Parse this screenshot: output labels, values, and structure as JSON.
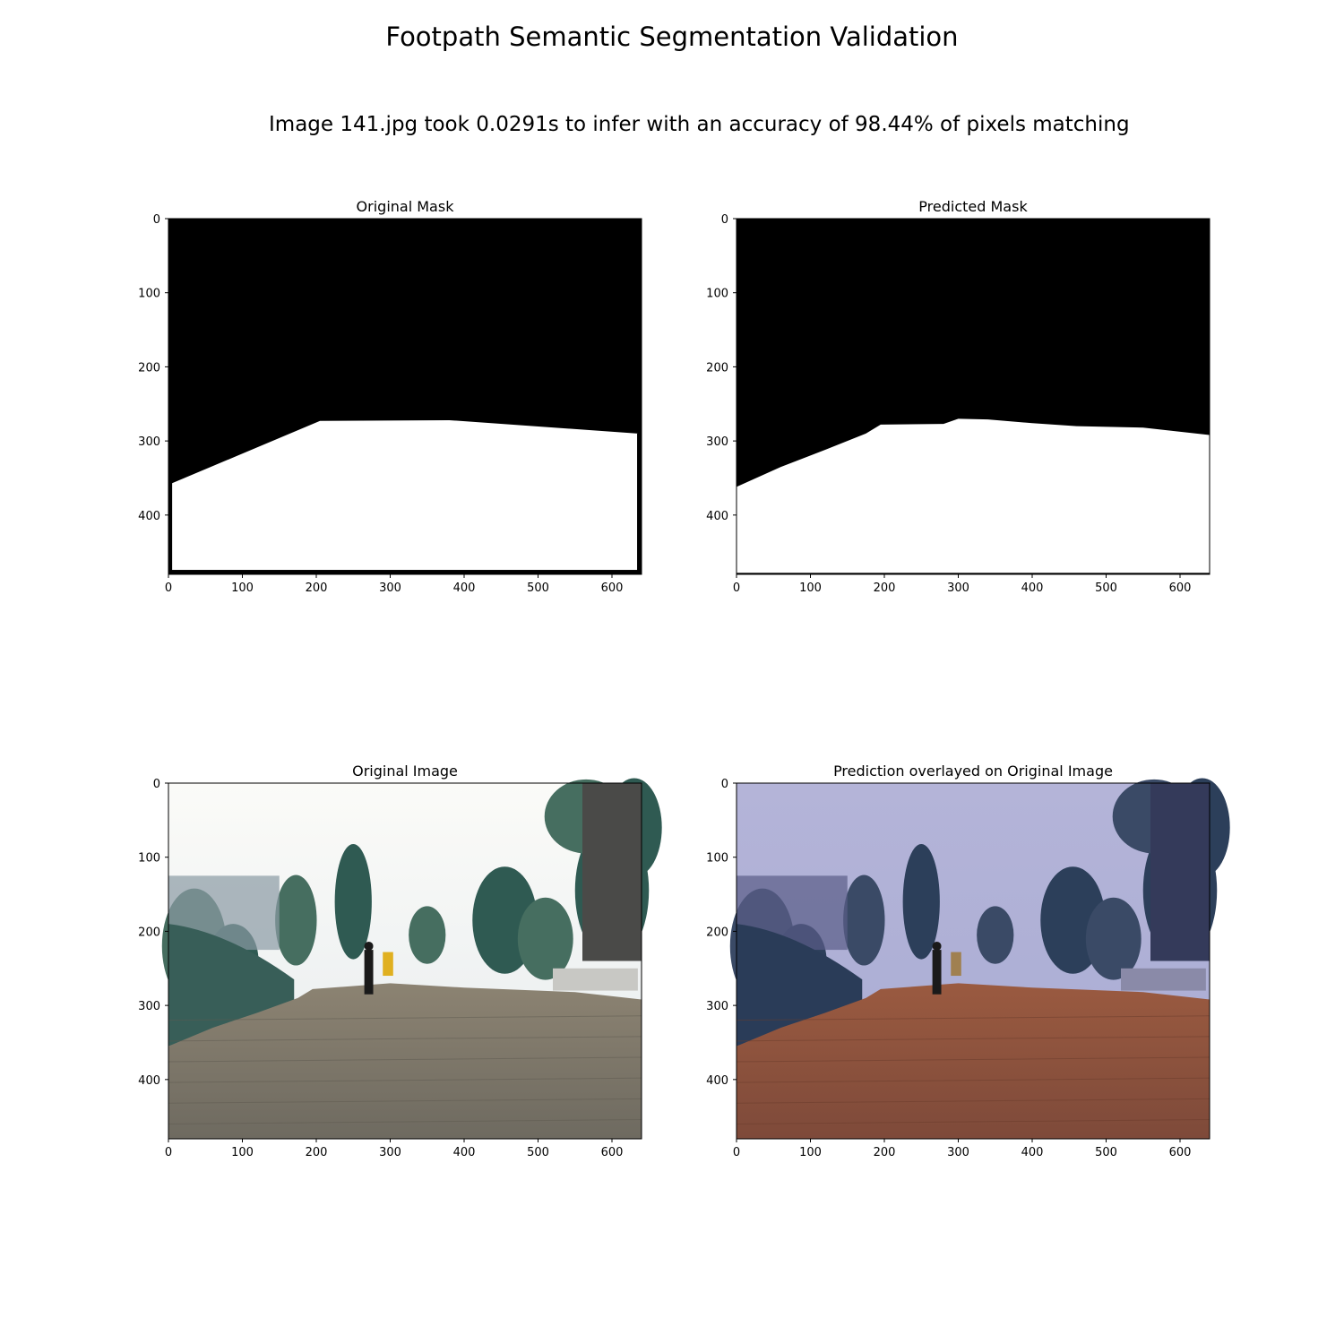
{
  "figure": {
    "title": "Footpath Semantic Segmentation Validation",
    "subtitle": "Image 141.jpg took 0.0291s to infer with an accuracy of 98.44% of pixels matching"
  },
  "chart_data": [
    {
      "type": "heatmap",
      "title": "Original Mask",
      "x_ticks": [
        0,
        100,
        200,
        300,
        400,
        500,
        600
      ],
      "y_ticks": [
        0,
        100,
        200,
        300,
        400
      ],
      "xlim": [
        0,
        640
      ],
      "ylim": [
        480,
        0
      ],
      "content": "binary mask",
      "colors": {
        "background": "#000000",
        "footpath": "#ffffff"
      },
      "footpath_boundary": [
        [
          5,
          357
        ],
        [
          205,
          273
        ],
        [
          380,
          272
        ],
        [
          635,
          290
        ]
      ]
    },
    {
      "type": "heatmap",
      "title": "Predicted Mask",
      "x_ticks": [
        0,
        100,
        200,
        300,
        400,
        500,
        600
      ],
      "y_ticks": [
        0,
        100,
        200,
        300,
        400
      ],
      "xlim": [
        0,
        640
      ],
      "ylim": [
        480,
        0
      ],
      "content": "binary mask",
      "colors": {
        "background": "#000000",
        "footpath": "#ffffff"
      },
      "footpath_boundary": [
        [
          0,
          362
        ],
        [
          60,
          335
        ],
        [
          120,
          312
        ],
        [
          175,
          290
        ],
        [
          195,
          278
        ],
        [
          280,
          277
        ],
        [
          300,
          270
        ],
        [
          340,
          271
        ],
        [
          400,
          276
        ],
        [
          460,
          280
        ],
        [
          550,
          282
        ],
        [
          640,
          292
        ]
      ]
    },
    {
      "type": "heatmap",
      "title": "Original Image",
      "x_ticks": [
        0,
        100,
        200,
        300,
        400,
        500,
        600
      ],
      "y_ticks": [
        0,
        100,
        200,
        300,
        400
      ],
      "xlim": [
        0,
        640
      ],
      "ylim": [
        480,
        0
      ],
      "content": "photograph"
    },
    {
      "type": "heatmap",
      "title": "Prediction overlayed on Original Image",
      "x_ticks": [
        0,
        100,
        200,
        300,
        400,
        500,
        600
      ],
      "y_ticks": [
        0,
        100,
        200,
        300,
        400
      ],
      "xlim": [
        0,
        640
      ],
      "ylim": [
        480,
        0
      ],
      "content": "photograph with prediction overlay",
      "colors": {
        "background_overlay": "#7070c8",
        "footpath_overlay": "#c0582c"
      }
    }
  ]
}
